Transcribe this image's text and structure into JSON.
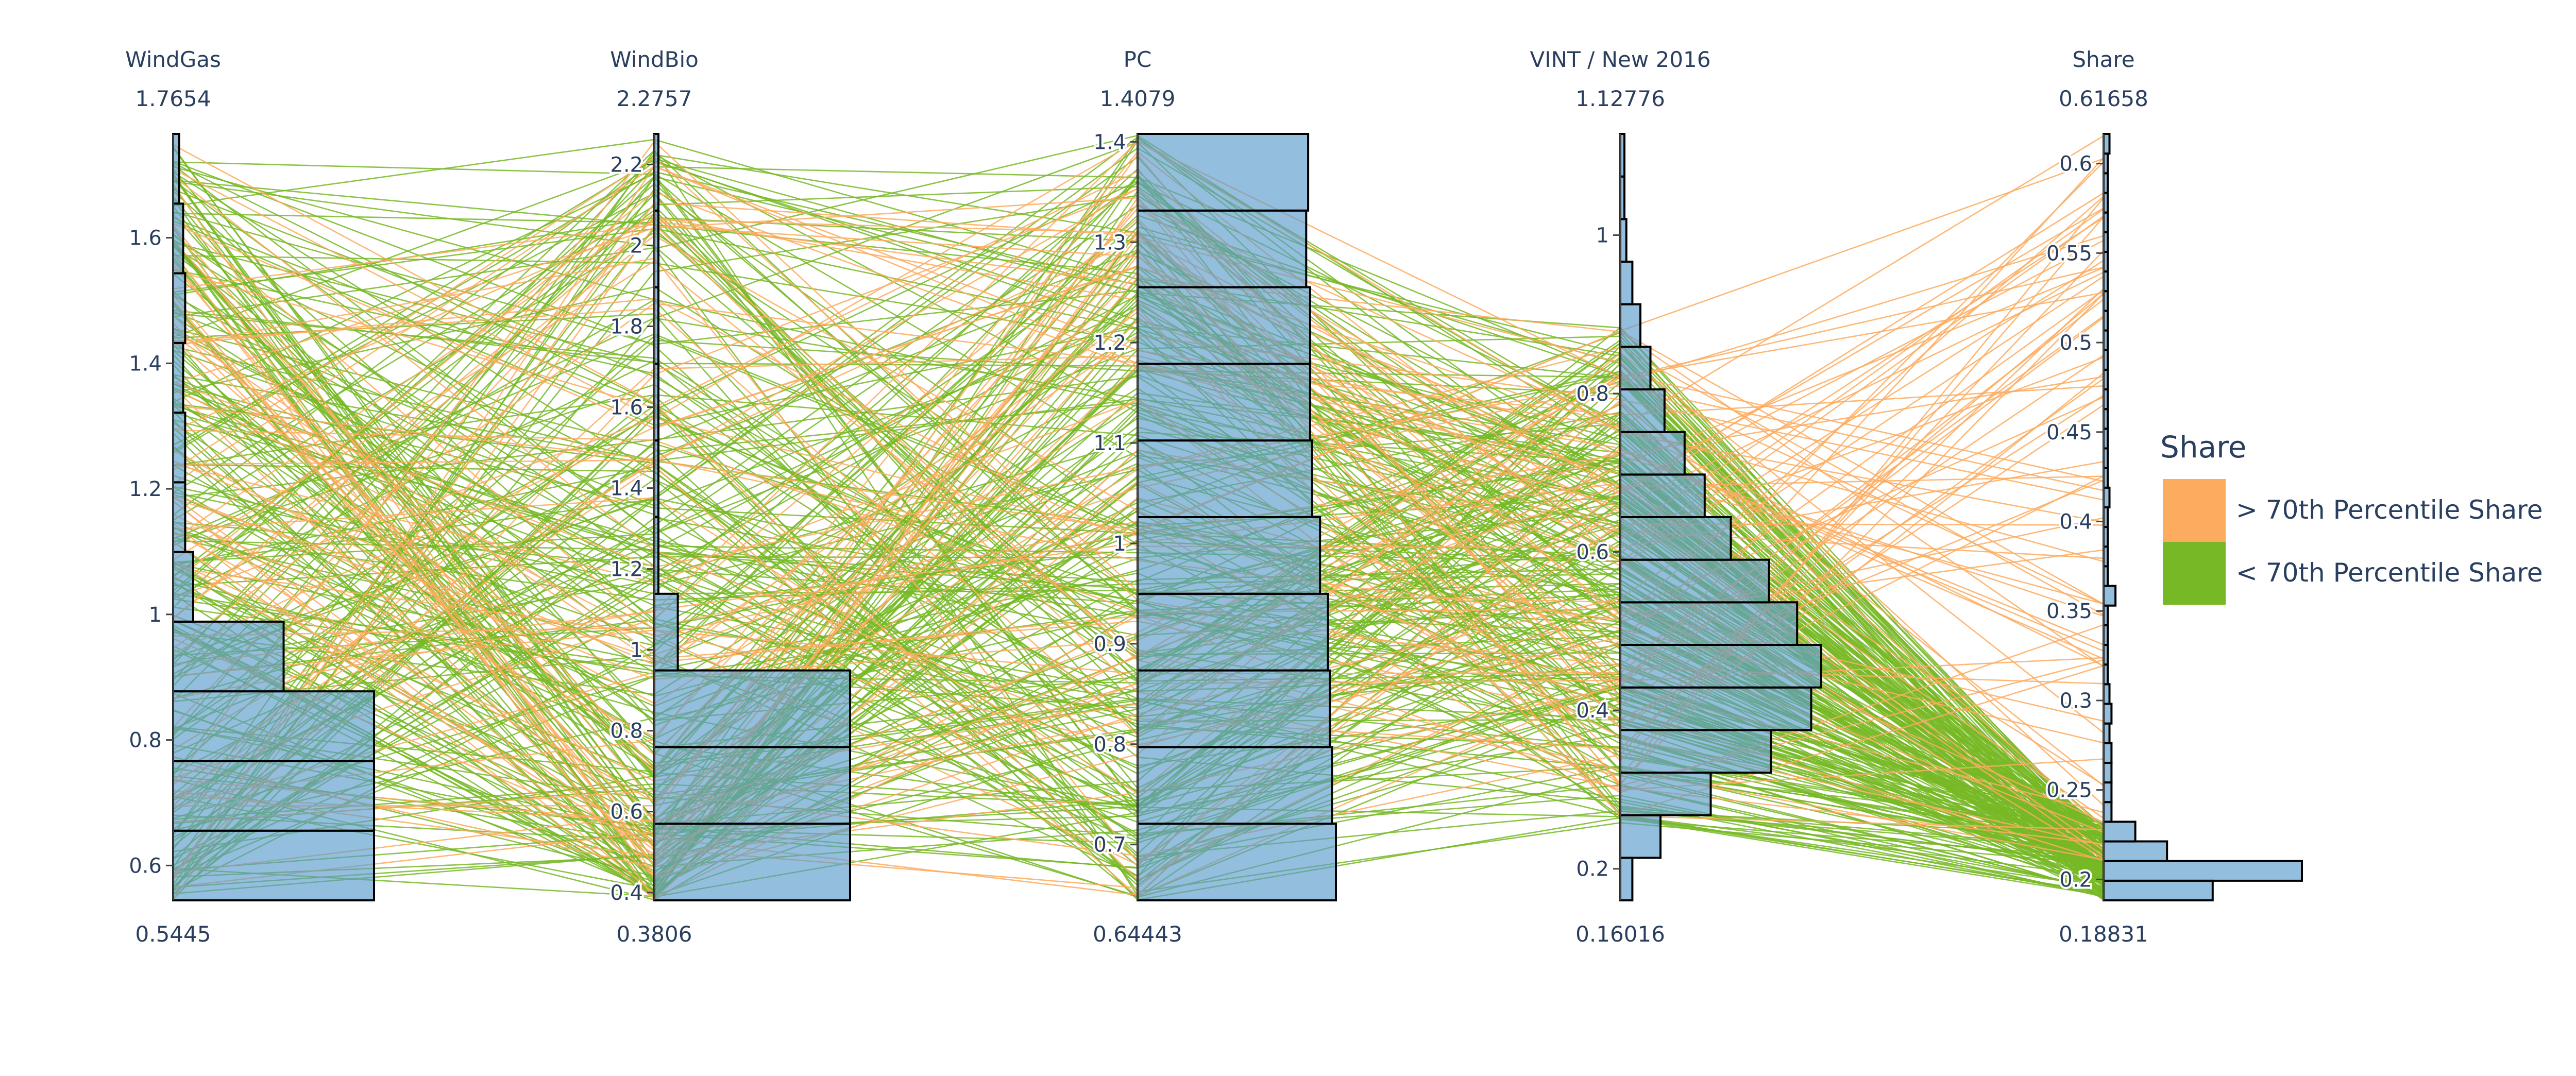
{
  "chart_data": {
    "type": "parallel_coordinates",
    "legend": {
      "title": "Share",
      "placement": "right",
      "entries": [
        {
          "label": "> 70th Percentile Share",
          "color": "#fdab5f"
        },
        {
          "label": "< 70th Percentile Share",
          "color": "#77b826"
        }
      ]
    },
    "histogram_color": "#5b9bcb",
    "axes": [
      {
        "name": "WindGas",
        "max_label": "1.7654",
        "min_label": "0.5445",
        "range": [
          0.5445,
          1.7654
        ],
        "ticks": [
          0.6,
          0.8,
          1,
          1.2,
          1.4,
          1.6
        ],
        "tick_labels": [
          "0.6",
          "0.8",
          "1",
          "1.2",
          "1.4",
          "1.6"
        ],
        "histogram_relative": [
          1.0,
          1.0,
          1.0,
          0.55,
          0.1,
          0.06,
          0.06,
          0.05,
          0.06,
          0.05,
          0.03
        ]
      },
      {
        "name": "WindBio",
        "max_label": "2.2757",
        "min_label": "0.3806",
        "range": [
          0.3806,
          2.2757
        ],
        "ticks": [
          0.4,
          0.6,
          0.8,
          1,
          1.2,
          1.4,
          1.6,
          1.8,
          2,
          2.2
        ],
        "tick_labels": [
          "0.4",
          "0.6",
          "0.8",
          "1",
          "1.2",
          "1.4",
          "1.6",
          "1.8",
          "2",
          "2.2"
        ],
        "histogram_relative": [
          1.0,
          1.0,
          1.0,
          0.12,
          0.02,
          0.02,
          0.01,
          0.01,
          0.01,
          0.01
        ]
      },
      {
        "name": "PC",
        "max_label": "1.4079",
        "min_label": "0.64443",
        "range": [
          0.64443,
          1.4079
        ],
        "ticks": [
          0.7,
          0.8,
          0.9,
          1,
          1.1,
          1.2,
          1.3,
          1.4
        ],
        "tick_labels": [
          "0.7",
          "0.8",
          "0.9",
          "1",
          "1.1",
          "1.2",
          "1.3",
          "1.4"
        ],
        "histogram_relative": [
          1.0,
          0.98,
          0.97,
          0.96,
          0.92,
          0.88,
          0.87,
          0.87,
          0.85,
          0.86
        ]
      },
      {
        "name": "VINT / New 2016",
        "max_label": "1.12776",
        "min_label": "0.16016",
        "range": [
          0.16016,
          1.12776
        ],
        "ticks": [
          0.2,
          0.4,
          0.6,
          0.8,
          1
        ],
        "tick_labels": [
          "0.2",
          "0.4",
          "0.6",
          "0.8",
          "1"
        ],
        "histogram_relative": [
          0.06,
          0.2,
          0.45,
          0.75,
          0.95,
          1.0,
          0.88,
          0.74,
          0.55,
          0.42,
          0.32,
          0.22,
          0.15,
          0.1,
          0.06,
          0.03,
          0.02,
          0.02
        ]
      },
      {
        "name": "Share",
        "max_label": "0.61658",
        "min_label": "0.18831",
        "range": [
          0.18831,
          0.61658
        ],
        "ticks": [
          0.2,
          0.25,
          0.3,
          0.35,
          0.4,
          0.45,
          0.5,
          0.55,
          0.6
        ],
        "tick_labels": [
          "0.2",
          "0.25",
          "0.3",
          "0.35",
          "0.4",
          "0.45",
          "0.5",
          "0.55",
          "0.6"
        ],
        "histogram_relative": [
          0.55,
          1.0,
          0.32,
          0.16,
          0.04,
          0.04,
          0.04,
          0.04,
          0.03,
          0.04,
          0.03,
          0.02,
          0.02,
          0.02,
          0.02,
          0.06,
          0.02,
          0.02,
          0.02,
          0.02,
          0.03,
          0.02,
          0.01,
          0.02,
          0.01,
          0.01,
          0.01,
          0.01,
          0.01,
          0.02,
          0.01,
          0.01,
          0.02,
          0.01,
          0.01,
          0.01,
          0.01,
          0.01,
          0.03
        ]
      }
    ]
  }
}
